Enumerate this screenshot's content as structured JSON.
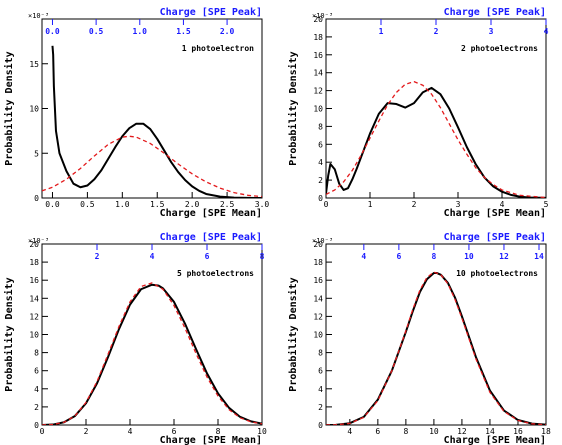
{
  "colors": {
    "black_curve": "#000000",
    "red_curve": "#e31a1c",
    "top_axis": "#1a1aff"
  },
  "chart_data": [
    {
      "type": "line",
      "annotation": "1 photoelectron",
      "ylabel": "Probability Density",
      "xlabel": "Charge [SPE Mean]",
      "x2label": "Charge [SPE Peak]",
      "y_exponent": "×10⁻³",
      "xlim": [
        -0.15,
        3.0
      ],
      "ylim": [
        0,
        20
      ],
      "x_ticks": [
        "0.0",
        "0.5",
        "1.0",
        "1.5",
        "2.0",
        "2.5",
        "3.0"
      ],
      "y_ticks": [
        "0",
        "5",
        "10",
        "15"
      ],
      "x2_ticks": [
        "0.0",
        "0.5",
        "1.0",
        "1.5",
        "2.0"
      ],
      "x2_scale": 1.25,
      "series": [
        {
          "style": "black-solid",
          "x": [
            0.0,
            0.01,
            0.02,
            0.05,
            0.1,
            0.2,
            0.3,
            0.4,
            0.5,
            0.6,
            0.7,
            0.8,
            0.9,
            1.0,
            1.1,
            1.2,
            1.3,
            1.4,
            1.5,
            1.6,
            1.7,
            1.8,
            1.9,
            2.0,
            2.1,
            2.2,
            2.4,
            2.6,
            2.8,
            3.0
          ],
          "y": [
            17.0,
            16.0,
            12.5,
            7.5,
            5.0,
            3.0,
            1.6,
            1.2,
            1.4,
            2.1,
            3.1,
            4.4,
            5.7,
            6.9,
            7.8,
            8.3,
            8.3,
            7.7,
            6.6,
            5.3,
            4.0,
            2.9,
            2.0,
            1.3,
            0.8,
            0.45,
            0.15,
            0.04,
            0.01,
            0.0
          ]
        },
        {
          "style": "red-dashed",
          "x": [
            -0.15,
            0.0,
            0.2,
            0.4,
            0.6,
            0.8,
            1.0,
            1.1,
            1.2,
            1.4,
            1.6,
            1.8,
            2.0,
            2.2,
            2.4,
            2.6,
            2.8,
            3.0
          ],
          "y": [
            0.8,
            1.2,
            2.1,
            3.3,
            4.7,
            6.0,
            6.8,
            6.9,
            6.8,
            6.1,
            5.0,
            3.8,
            2.7,
            1.8,
            1.1,
            0.6,
            0.3,
            0.15
          ]
        }
      ]
    },
    {
      "type": "line",
      "annotation": "2 photoelectrons",
      "ylabel": "Probability Density",
      "xlabel": "Charge [SPE Mean]",
      "x2label": "Charge [SPE Peak]",
      "y_exponent": "×10⁻³",
      "xlim": [
        0,
        5.0
      ],
      "ylim": [
        0,
        20
      ],
      "x_ticks": [
        "0",
        "1",
        "2",
        "3",
        "4",
        "5"
      ],
      "y_ticks": [
        "0",
        "2",
        "4",
        "6",
        "8",
        "10",
        "12",
        "14",
        "16",
        "18",
        "20"
      ],
      "x2_ticks": [
        "1",
        "2",
        "3",
        "4"
      ],
      "x2_scale": 1.25,
      "series": [
        {
          "style": "black-solid",
          "x": [
            0.0,
            0.05,
            0.1,
            0.2,
            0.3,
            0.4,
            0.5,
            0.6,
            0.7,
            0.8,
            1.0,
            1.2,
            1.4,
            1.6,
            1.8,
            2.0,
            2.2,
            2.4,
            2.6,
            2.8,
            3.0,
            3.2,
            3.4,
            3.6,
            3.8,
            4.0,
            4.2,
            4.4,
            4.6,
            5.0
          ],
          "y": [
            0.5,
            2.5,
            3.8,
            3.2,
            1.6,
            0.9,
            1.1,
            2.1,
            3.3,
            4.6,
            7.2,
            9.4,
            10.6,
            10.5,
            10.1,
            10.6,
            11.8,
            12.3,
            11.6,
            10.0,
            7.9,
            5.7,
            3.8,
            2.3,
            1.3,
            0.7,
            0.35,
            0.15,
            0.06,
            0.01
          ]
        },
        {
          "style": "red-dashed",
          "x": [
            0.0,
            0.2,
            0.4,
            0.6,
            0.8,
            1.0,
            1.2,
            1.4,
            1.6,
            1.8,
            2.0,
            2.2,
            2.4,
            2.6,
            2.8,
            3.0,
            3.2,
            3.4,
            3.6,
            3.8,
            4.0,
            4.4,
            5.0
          ],
          "y": [
            0.4,
            0.9,
            1.8,
            3.1,
            4.8,
            6.7,
            8.6,
            10.4,
            11.8,
            12.7,
            13.0,
            12.6,
            11.6,
            10.1,
            8.3,
            6.5,
            4.9,
            3.4,
            2.3,
            1.5,
            0.9,
            0.3,
            0.05
          ]
        }
      ]
    },
    {
      "type": "line",
      "annotation": "5 photoelectrons",
      "ylabel": "Probability Density",
      "xlabel": "Charge [SPE Mean]",
      "x2label": "Charge [SPE Peak]",
      "y_exponent": "×10⁻³",
      "xlim": [
        0,
        10
      ],
      "ylim": [
        0,
        20
      ],
      "x_ticks": [
        "0",
        "2",
        "4",
        "6",
        "8",
        "10"
      ],
      "y_ticks": [
        "0",
        "2",
        "4",
        "6",
        "8",
        "10",
        "12",
        "14",
        "16",
        "18",
        "20"
      ],
      "x2_ticks": [
        "2",
        "4",
        "6",
        "8"
      ],
      "x2_scale": 1.25,
      "series": [
        {
          "style": "black-solid",
          "x": [
            0.0,
            0.5,
            1.0,
            1.5,
            2.0,
            2.5,
            3.0,
            3.5,
            4.0,
            4.5,
            5.0,
            5.3,
            5.5,
            6.0,
            6.5,
            7.0,
            7.5,
            8.0,
            8.5,
            9.0,
            9.5,
            10.0
          ],
          "y": [
            0.0,
            0.05,
            0.3,
            1.0,
            2.4,
            4.6,
            7.5,
            10.6,
            13.3,
            15.0,
            15.5,
            15.4,
            15.1,
            13.6,
            11.2,
            8.4,
            5.7,
            3.5,
            1.9,
            0.9,
            0.4,
            0.15
          ]
        },
        {
          "style": "red-dashed",
          "x": [
            0.0,
            0.5,
            1.0,
            1.5,
            2.0,
            2.5,
            3.0,
            3.5,
            4.0,
            4.5,
            5.0,
            5.5,
            6.0,
            6.5,
            7.0,
            7.5,
            8.0,
            8.5,
            9.0,
            9.5,
            10.0
          ],
          "y": [
            0.0,
            0.05,
            0.3,
            1.0,
            2.5,
            4.8,
            7.8,
            10.9,
            13.6,
            15.3,
            15.7,
            15.0,
            13.2,
            10.7,
            7.9,
            5.3,
            3.2,
            1.7,
            0.8,
            0.35,
            0.13
          ]
        }
      ]
    },
    {
      "type": "line",
      "annotation": "10 photoelectrons",
      "ylabel": "Probability Density",
      "xlabel": "Charge [SPE Mean]",
      "x2label": "Charge [SPE Peak]",
      "y_exponent": "×10⁻³",
      "xlim": [
        2.3,
        18
      ],
      "ylim": [
        0,
        20
      ],
      "x_ticks": [
        "4",
        "6",
        "8",
        "10",
        "12",
        "14",
        "16",
        "18"
      ],
      "y_ticks": [
        "0",
        "2",
        "4",
        "6",
        "8",
        "10",
        "12",
        "14",
        "16",
        "18",
        "20"
      ],
      "x2_ticks": [
        "4",
        "6",
        "8",
        "10",
        "12",
        "14"
      ],
      "x2_scale": 1.25,
      "series": [
        {
          "style": "black-solid",
          "x": [
            2.3,
            3.0,
            4.0,
            5.0,
            6.0,
            7.0,
            8.0,
            8.5,
            9.0,
            9.5,
            10.0,
            10.2,
            10.5,
            11.0,
            11.5,
            12.0,
            13.0,
            14.0,
            15.0,
            16.0,
            17.0,
            18.0
          ],
          "y": [
            0.0,
            0.02,
            0.2,
            0.9,
            2.8,
            6.0,
            10.3,
            12.6,
            14.7,
            16.1,
            16.8,
            16.8,
            16.6,
            15.7,
            14.1,
            12.0,
            7.5,
            3.8,
            1.6,
            0.55,
            0.15,
            0.04
          ]
        },
        {
          "style": "red-dashed",
          "x": [
            2.3,
            3.0,
            4.0,
            5.0,
            6.0,
            7.0,
            8.0,
            8.5,
            9.0,
            9.5,
            10.0,
            10.5,
            11.0,
            11.5,
            12.0,
            13.0,
            14.0,
            15.0,
            16.0,
            17.0,
            18.0
          ],
          "y": [
            0.0,
            0.02,
            0.18,
            0.85,
            2.7,
            6.0,
            10.4,
            12.8,
            14.9,
            16.3,
            16.9,
            16.6,
            15.6,
            13.9,
            11.8,
            7.3,
            3.6,
            1.5,
            0.5,
            0.13,
            0.03
          ]
        }
      ]
    }
  ]
}
